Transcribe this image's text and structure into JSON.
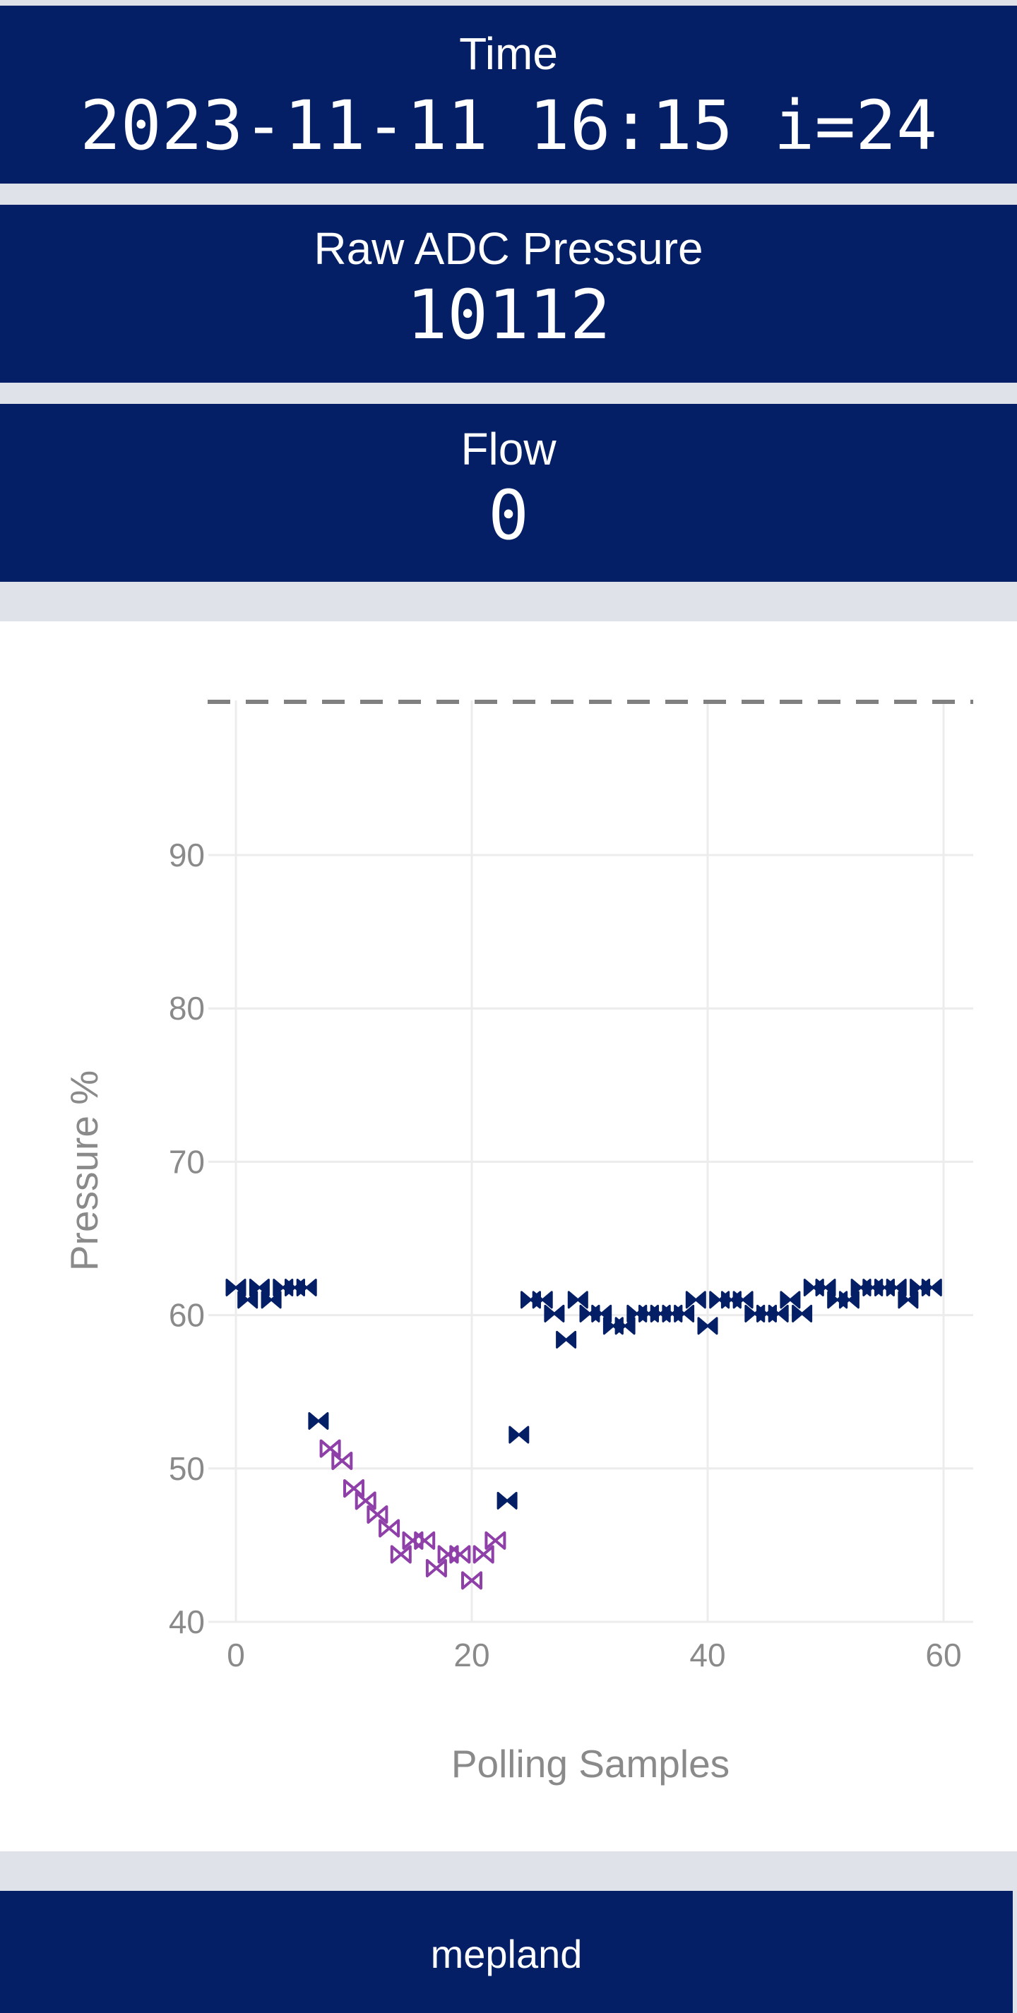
{
  "cards": {
    "time": {
      "label": "Time",
      "value": "2023-11-11 16:15 i=24"
    },
    "raw_pressure": {
      "label": "Raw ADC Pressure",
      "value": "10112"
    },
    "flow": {
      "label": "Flow",
      "value": "0"
    }
  },
  "footer": {
    "brand": "mepland"
  },
  "colors": {
    "navy": "#041f66",
    "series_normal": "#041f66",
    "series_low": "#8e3fa8",
    "threshold_line": "#808080",
    "grid": "#ececec",
    "axis_text": "#8a8a8a"
  },
  "chart_data": {
    "type": "scatter",
    "title": "",
    "xlabel": "Polling Samples",
    "ylabel": "Pressure %",
    "xlim": [
      0,
      62
    ],
    "ylim": [
      40,
      100
    ],
    "xticks": [
      0,
      20,
      40,
      60
    ],
    "yticks": [
      40,
      50,
      60,
      70,
      80,
      90
    ],
    "grid": true,
    "marker": "bowtie",
    "threshold": {
      "y": 100,
      "style": "dashed"
    },
    "series": [
      {
        "key": "normal",
        "filled": true,
        "points": [
          [
            0,
            61.8
          ],
          [
            1,
            61.0
          ],
          [
            2,
            61.8
          ],
          [
            3,
            61.0
          ],
          [
            4,
            61.8
          ],
          [
            5,
            61.8
          ],
          [
            6,
            61.8
          ],
          [
            7,
            53.1
          ],
          [
            23,
            47.9
          ],
          [
            24,
            52.2
          ],
          [
            25,
            61.0
          ],
          [
            26,
            61.0
          ],
          [
            27,
            60.1
          ],
          [
            28,
            58.4
          ],
          [
            29,
            61.0
          ],
          [
            30,
            60.1
          ],
          [
            31,
            60.1
          ],
          [
            32,
            59.3
          ],
          [
            33,
            59.3
          ],
          [
            34,
            60.1
          ],
          [
            35,
            60.1
          ],
          [
            36,
            60.1
          ],
          [
            37,
            60.1
          ],
          [
            38,
            60.1
          ],
          [
            39,
            61.0
          ],
          [
            40,
            59.3
          ],
          [
            41,
            61.0
          ],
          [
            42,
            61.0
          ],
          [
            43,
            61.0
          ],
          [
            44,
            60.1
          ],
          [
            45,
            60.1
          ],
          [
            46,
            60.1
          ],
          [
            47,
            61.0
          ],
          [
            48,
            60.1
          ],
          [
            49,
            61.8
          ],
          [
            50,
            61.8
          ],
          [
            51,
            61.0
          ],
          [
            52,
            61.0
          ],
          [
            53,
            61.8
          ],
          [
            54,
            61.8
          ],
          [
            55,
            61.8
          ],
          [
            56,
            61.8
          ],
          [
            57,
            61.0
          ],
          [
            58,
            61.8
          ],
          [
            59,
            61.8
          ]
        ]
      },
      {
        "key": "low",
        "filled": false,
        "points": [
          [
            8,
            51.3
          ],
          [
            9,
            50.5
          ],
          [
            10,
            48.7
          ],
          [
            11,
            47.9
          ],
          [
            12,
            47.0
          ],
          [
            13,
            46.1
          ],
          [
            14,
            44.4
          ],
          [
            15,
            45.3
          ],
          [
            16,
            45.3
          ],
          [
            17,
            43.5
          ],
          [
            18,
            44.4
          ],
          [
            19,
            44.4
          ],
          [
            20,
            42.7
          ],
          [
            21,
            44.4
          ],
          [
            22,
            45.3
          ]
        ]
      }
    ]
  }
}
